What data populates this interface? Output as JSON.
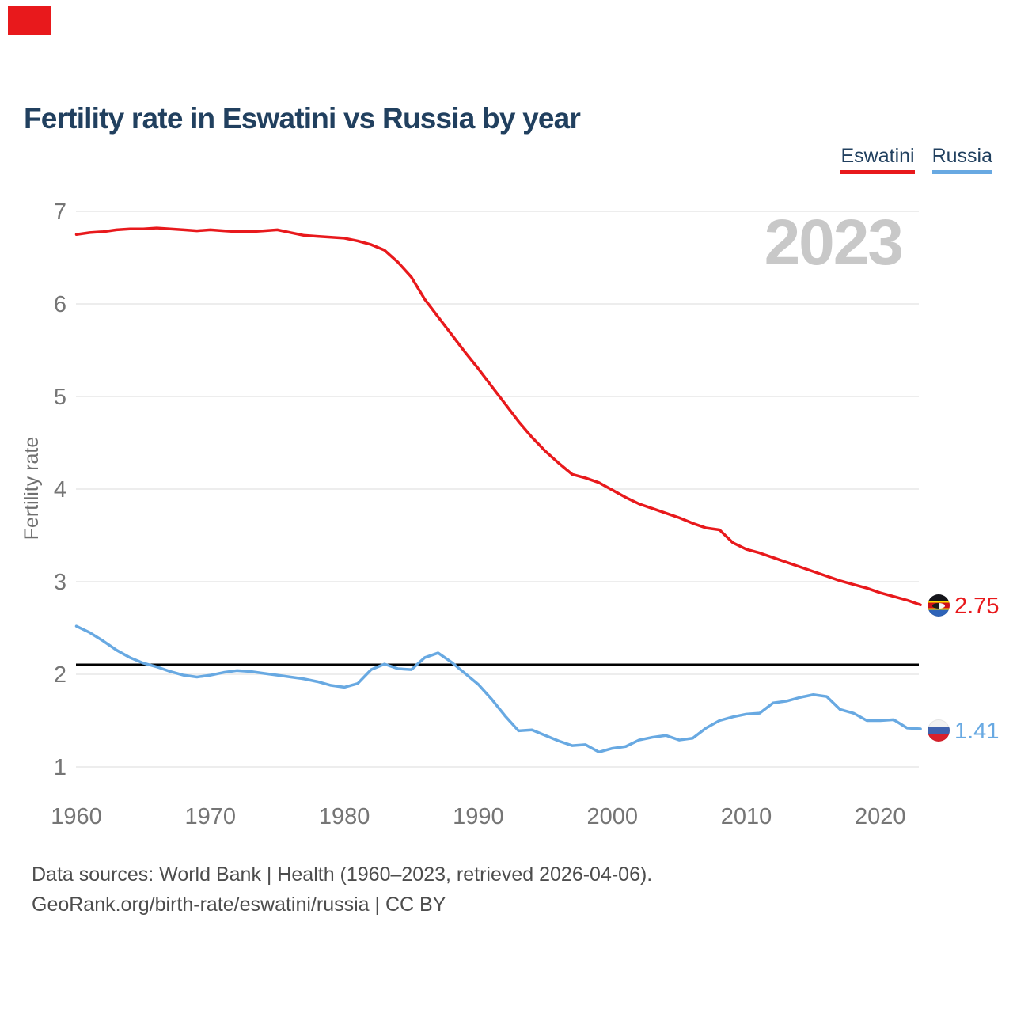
{
  "page": {
    "title": "Fertility rate in Eswatini vs Russia by year",
    "watermark_year": "2023",
    "footer_line1": "Data sources: World Bank | Health (1960–2023, retrieved 2026-04-06).",
    "footer_line2": "GeoRank.org/birth-rate/eswatini/russia | CC BY"
  },
  "colors": {
    "eswatini": "#e8191c",
    "russia": "#68a9e2",
    "title": "#21405f",
    "axis_text": "#757575",
    "gridline": "#e7e7e7",
    "reference_line": "#000000",
    "watermark": "#c8c8c8",
    "corner_block": "#e8191c"
  },
  "legend": {
    "items": [
      {
        "label": "Eswatini",
        "color": "#e8191c"
      },
      {
        "label": "Russia",
        "color": "#68a9e2"
      }
    ]
  },
  "end_labels": {
    "eswatini": {
      "flag_icon": "eswatini-flag",
      "value": "2.75"
    },
    "russia": {
      "flag_icon": "russia-flag",
      "value": "1.41"
    }
  },
  "chart_data": {
    "type": "line",
    "title": "Fertility rate in Eswatini vs Russia by year",
    "xlabel": "",
    "ylabel": "Fertility rate",
    "grid": "horizontal",
    "legend_position": "top-right",
    "ylim": [
      1,
      7
    ],
    "xlim": [
      1960,
      2023
    ],
    "yticks": [
      1,
      2,
      3,
      4,
      5,
      6,
      7
    ],
    "xticks": [
      1960,
      1970,
      1980,
      1990,
      2000,
      2010,
      2020
    ],
    "reference_line": 2.1,
    "x": [
      1960,
      1961,
      1962,
      1963,
      1964,
      1965,
      1966,
      1967,
      1968,
      1969,
      1970,
      1971,
      1972,
      1973,
      1974,
      1975,
      1976,
      1977,
      1978,
      1979,
      1980,
      1981,
      1982,
      1983,
      1984,
      1985,
      1986,
      1987,
      1988,
      1989,
      1990,
      1991,
      1992,
      1993,
      1994,
      1995,
      1996,
      1997,
      1998,
      1999,
      2000,
      2001,
      2002,
      2003,
      2004,
      2005,
      2006,
      2007,
      2008,
      2009,
      2010,
      2011,
      2012,
      2013,
      2014,
      2015,
      2016,
      2017,
      2018,
      2019,
      2020,
      2021,
      2022,
      2023
    ],
    "series": [
      {
        "name": "Eswatini",
        "color": "#e8191c",
        "end_value": 2.75,
        "values": [
          6.75,
          6.77,
          6.78,
          6.8,
          6.81,
          6.81,
          6.82,
          6.81,
          6.8,
          6.79,
          6.8,
          6.79,
          6.78,
          6.78,
          6.79,
          6.8,
          6.77,
          6.74,
          6.73,
          6.72,
          6.71,
          6.68,
          6.64,
          6.58,
          6.45,
          6.29,
          6.05,
          5.86,
          5.67,
          5.48,
          5.3,
          5.11,
          4.92,
          4.73,
          4.56,
          4.41,
          4.28,
          4.16,
          4.12,
          4.07,
          3.99,
          3.91,
          3.84,
          3.79,
          3.74,
          3.69,
          3.63,
          3.58,
          3.56,
          3.42,
          3.35,
          3.31,
          3.26,
          3.21,
          3.16,
          3.11,
          3.06,
          3.01,
          2.97,
          2.93,
          2.88,
          2.84,
          2.8,
          2.75
        ]
      },
      {
        "name": "Russia",
        "color": "#68a9e2",
        "end_value": 1.41,
        "values": [
          2.52,
          2.45,
          2.36,
          2.26,
          2.18,
          2.12,
          2.08,
          2.03,
          1.99,
          1.97,
          1.99,
          2.02,
          2.04,
          2.03,
          2.01,
          1.99,
          1.97,
          1.95,
          1.92,
          1.88,
          1.86,
          1.9,
          2.05,
          2.11,
          2.06,
          2.05,
          2.18,
          2.23,
          2.13,
          2.01,
          1.89,
          1.73,
          1.55,
          1.39,
          1.4,
          1.34,
          1.28,
          1.23,
          1.24,
          1.16,
          1.2,
          1.22,
          1.29,
          1.32,
          1.34,
          1.29,
          1.31,
          1.42,
          1.5,
          1.54,
          1.57,
          1.58,
          1.69,
          1.71,
          1.75,
          1.78,
          1.76,
          1.62,
          1.58,
          1.5,
          1.5,
          1.51,
          1.42,
          1.41
        ]
      }
    ]
  }
}
